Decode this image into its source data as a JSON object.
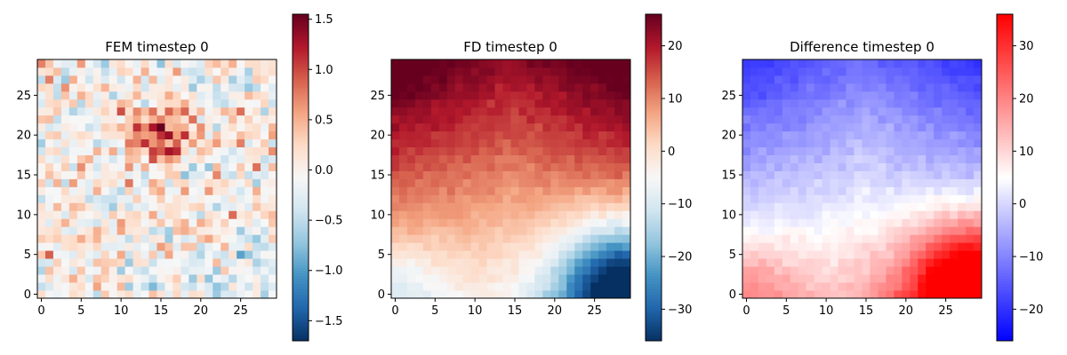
{
  "chart_data": [
    {
      "type": "heatmap",
      "title": "FEM timestep 0",
      "grid_size": [
        30,
        30
      ],
      "xlim": [
        -0.5,
        29.5
      ],
      "ylim": [
        -0.5,
        29.5
      ],
      "xticks": [
        "0",
        "5",
        "10",
        "15",
        "20",
        "25"
      ],
      "yticks": [
        "0",
        "5",
        "10",
        "15",
        "20",
        "25"
      ],
      "colormap": "RdBu_r",
      "color_range": [
        -1.7,
        1.55
      ],
      "colorbar_ticks": [
        "-1.5",
        "-1.0",
        "-0.5",
        "0.0",
        "0.5",
        "1.0",
        "1.5"
      ],
      "field": "noisy field; positive blob centered near (15, 20) peaking about 1.5; values elsewhere mostly between -0.8 and 0.6; strong negatives near bottom-right around -1.6",
      "grid": false
    },
    {
      "type": "heatmap",
      "title": "FD timestep 0",
      "grid_size": [
        30,
        30
      ],
      "xlim": [
        -0.5,
        29.5
      ],
      "ylim": [
        -0.5,
        29.5
      ],
      "xticks": [
        "0",
        "5",
        "10",
        "15",
        "20",
        "25"
      ],
      "yticks": [
        "0",
        "5",
        "10",
        "15",
        "20",
        "25"
      ],
      "colormap": "RdBu_r",
      "color_range": [
        -36,
        26
      ],
      "colorbar_ticks": [
        "-30",
        "-20",
        "-10",
        "0",
        "10",
        "20"
      ],
      "field": "smooth field; about 25 at top corners, about 10 across the middle band, near 0 to -5 lower-left, down to about -35 at bottom-right corner",
      "grid": false
    },
    {
      "type": "heatmap",
      "title": "Difference timestep 0",
      "grid_size": [
        30,
        30
      ],
      "xlim": [
        -0.5,
        29.5
      ],
      "ylim": [
        -0.5,
        29.5
      ],
      "xticks": [
        "0",
        "5",
        "10",
        "15",
        "20",
        "25"
      ],
      "yticks": [
        "0",
        "5",
        "10",
        "15",
        "20",
        "25"
      ],
      "colormap": "bwr",
      "color_range": [
        -26,
        36
      ],
      "colorbar_ticks": [
        "-20",
        "-10",
        "0",
        "10",
        "20",
        "30"
      ],
      "field": "about -25 at top corners, around -5 in the middle, about 35 at bottom-right corner, around 12 at bottom-left",
      "grid": false
    }
  ]
}
